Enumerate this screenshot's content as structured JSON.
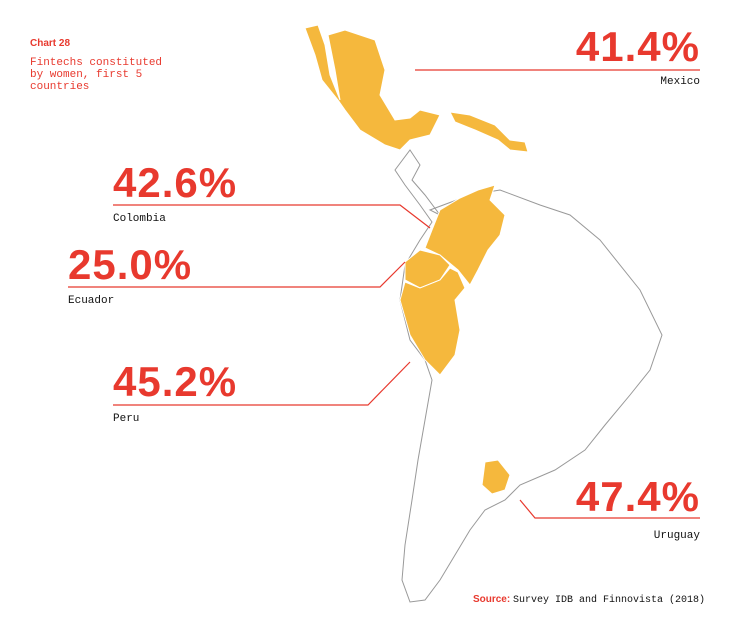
{
  "header": {
    "label": "Chart 28",
    "title": "Fintechs constituted by women, first 5 countries"
  },
  "callouts": [
    {
      "value": "41.4%",
      "country": "Mexico"
    },
    {
      "value": "42.6%",
      "country": "Colombia"
    },
    {
      "value": "25.0%",
      "country": "Ecuador"
    },
    {
      "value": "45.2%",
      "country": "Peru"
    },
    {
      "value": "47.4%",
      "country": "Uruguay"
    }
  ],
  "source": {
    "label": "Source:",
    "text": "Survey IDB and Finnovista (2018)"
  }
}
